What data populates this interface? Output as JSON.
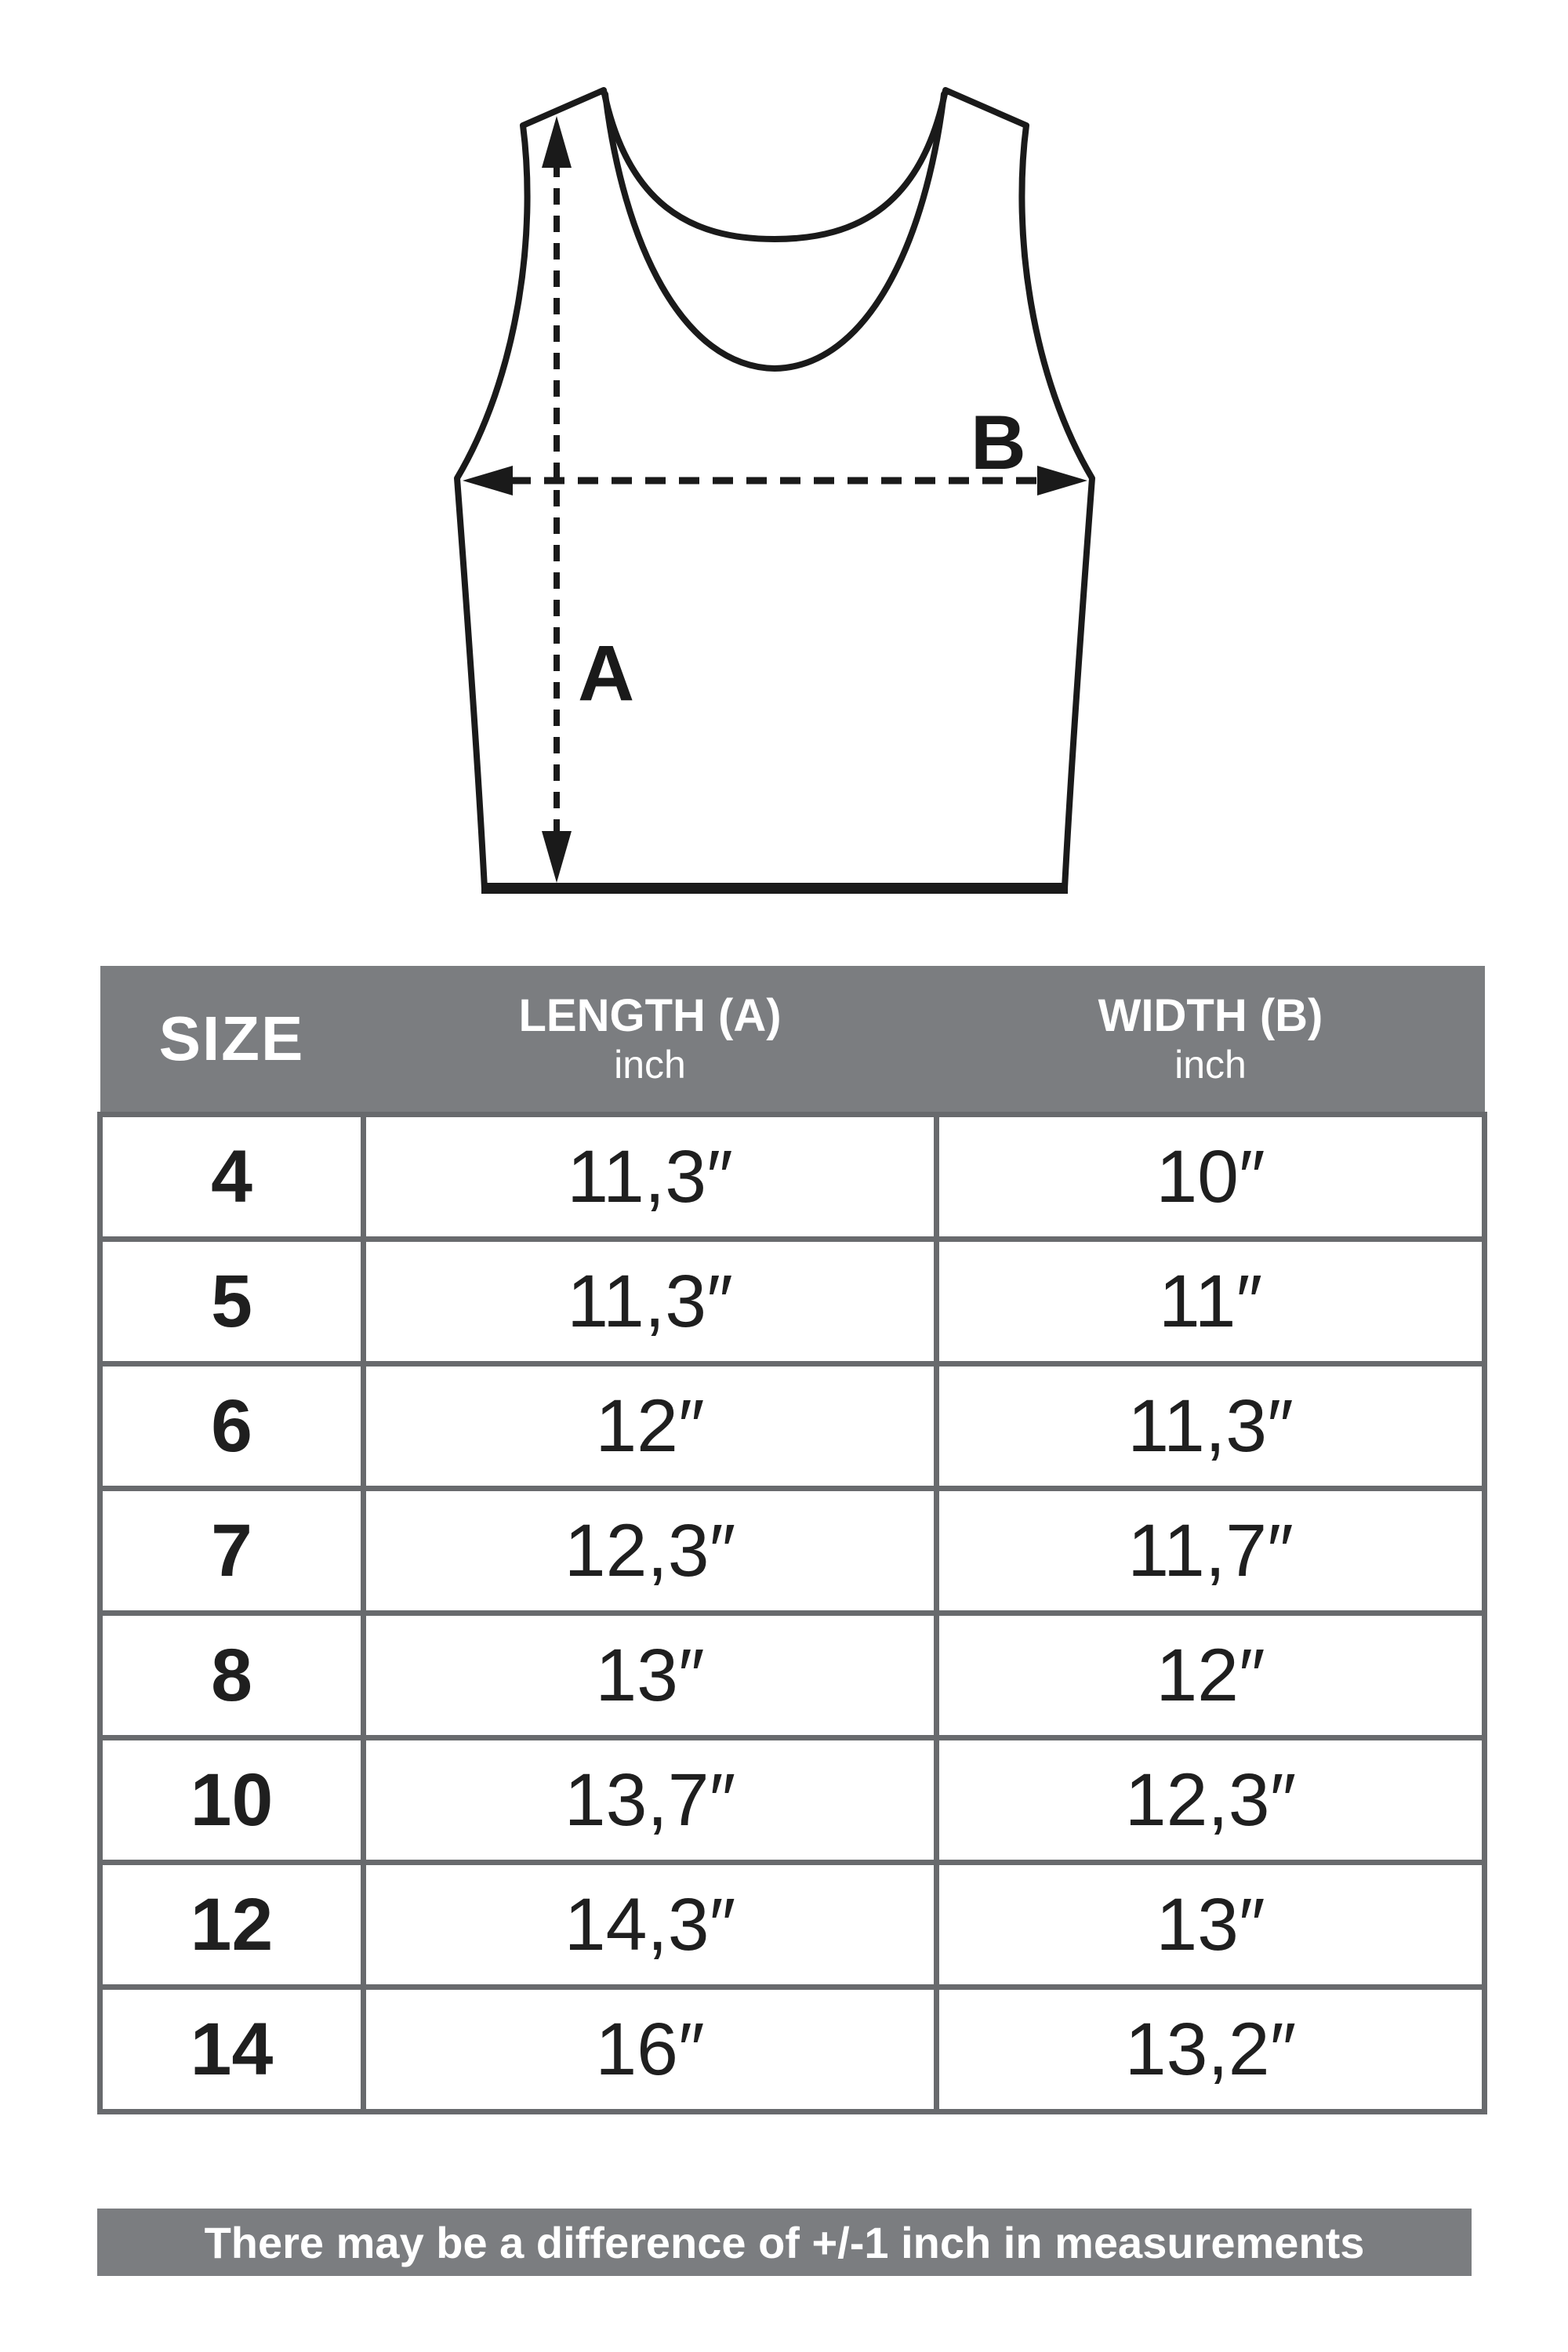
{
  "diagram": {
    "length_label": "A",
    "width_label": "B"
  },
  "table": {
    "header": {
      "size": "SIZE",
      "length_title": "LENGTH (A)",
      "length_unit": "inch",
      "width_title": "WIDTH (B)",
      "width_unit": "inch"
    },
    "rows": [
      {
        "size": "4",
        "length": "11,3″",
        "width": "10″"
      },
      {
        "size": "5",
        "length": "11,3″",
        "width": "11″"
      },
      {
        "size": "6",
        "length": "12″",
        "width": "11,3″"
      },
      {
        "size": "7",
        "length": "12,3″",
        "width": "11,7″"
      },
      {
        "size": "8",
        "length": "13″",
        "width": "12″"
      },
      {
        "size": "10",
        "length": "13,7″",
        "width": "12,3″"
      },
      {
        "size": "12",
        "length": "14,3″",
        "width": "13″"
      },
      {
        "size": "14",
        "length": "16″",
        "width": "13,2″"
      }
    ]
  },
  "footer": {
    "note": "There may be a difference of +/-1 inch in measurements"
  },
  "colors": {
    "band_gray": "#7b7d80",
    "border_gray": "#686a6d",
    "line_black": "#1a1a1a",
    "background": "#ffffff"
  }
}
